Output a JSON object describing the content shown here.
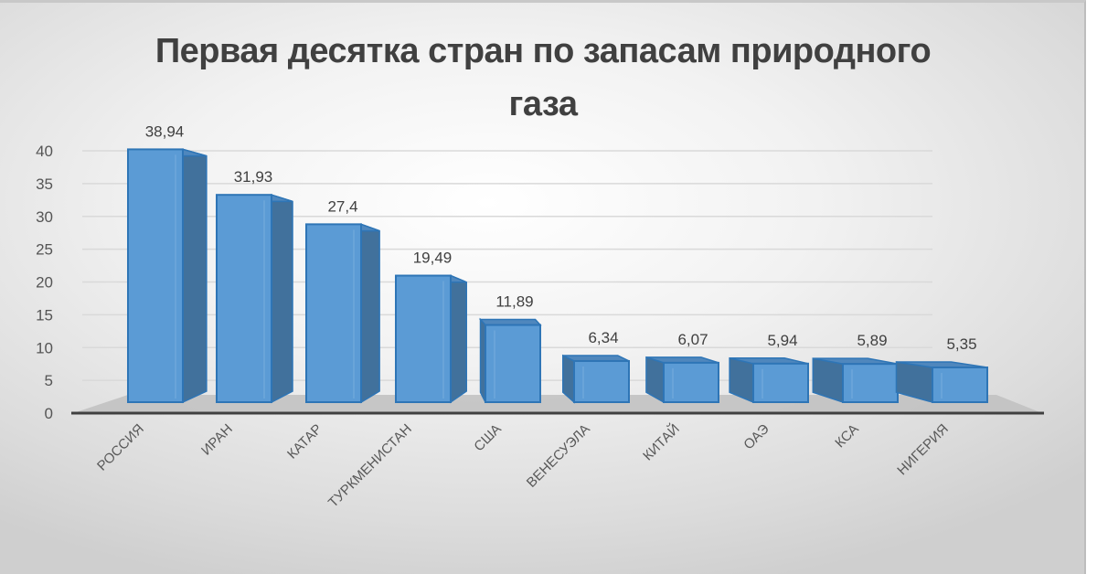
{
  "chart_data": {
    "type": "bar",
    "style": "3d-column",
    "title": "Первая десятка стран по запасам природного газа",
    "title_lines": [
      "Первая десятка стран по запасам природного",
      "газа"
    ],
    "xlabel": "",
    "ylabel": "",
    "ylim": [
      0,
      40
    ],
    "yticks": [
      0,
      5,
      10,
      15,
      20,
      25,
      30,
      35,
      40
    ],
    "grid": true,
    "legend": null,
    "categories": [
      "РОССИЯ",
      "ИРАН",
      "КАТАР",
      "ТУРКМЕНИСТАН",
      "США",
      "ВЕНЕСУЭЛА",
      "КИТАЙ",
      "ОАЭ",
      "КСА",
      "НИГЕРИЯ"
    ],
    "values": [
      38.94,
      31.93,
      27.4,
      19.49,
      11.89,
      6.34,
      6.07,
      5.94,
      5.89,
      5.35
    ],
    "data_labels": [
      "38,94",
      "31,93",
      "27,4",
      "19,49",
      "11,89",
      "6,34",
      "6,07",
      "5,94",
      "5,89",
      "5,35"
    ]
  },
  "colors": {
    "bar_front": "#5b9bd5",
    "bar_side": "#41719c",
    "bar_top": "#4f87bd",
    "bar_edge": "#2e75b6",
    "floor": "#bfbfbf",
    "axis_line": "#404040",
    "grid": "#d9d9d9",
    "text": "#404040"
  }
}
